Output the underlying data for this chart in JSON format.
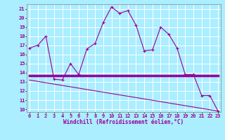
{
  "xlabel": "Windchill (Refroidissement éolien,°C)",
  "background_color": "#aaeeff",
  "grid_color": "#ffffff",
  "line_color": "#990099",
  "x_ticks": [
    0,
    1,
    2,
    3,
    4,
    5,
    6,
    7,
    8,
    9,
    10,
    11,
    12,
    13,
    14,
    15,
    16,
    17,
    18,
    19,
    20,
    21,
    22,
    23
  ],
  "y_ticks": [
    10,
    11,
    12,
    13,
    14,
    15,
    16,
    17,
    18,
    19,
    20,
    21
  ],
  "xlim": [
    -0.3,
    23.3
  ],
  "ylim": [
    9.7,
    21.5
  ],
  "curve1_x": [
    0,
    1,
    2,
    3,
    4,
    5,
    6,
    7,
    8,
    9,
    10,
    11,
    12,
    13,
    14,
    15,
    16,
    17,
    18,
    19,
    20,
    21,
    22,
    23
  ],
  "curve1_y": [
    16.7,
    17.0,
    18.0,
    13.3,
    13.2,
    15.0,
    13.8,
    16.6,
    17.2,
    19.5,
    21.2,
    20.5,
    20.8,
    19.2,
    16.4,
    16.5,
    19.0,
    18.2,
    16.7,
    13.8,
    13.8,
    11.5,
    11.5,
    9.8
  ],
  "curve2_x": [
    0,
    19,
    23
  ],
  "curve2_y": [
    13.7,
    13.7,
    13.7
  ],
  "curve3_x": [
    0,
    23
  ],
  "curve3_y": [
    13.2,
    9.8
  ],
  "xlabel_fontsize": 5.5,
  "tick_fontsize": 5.0
}
